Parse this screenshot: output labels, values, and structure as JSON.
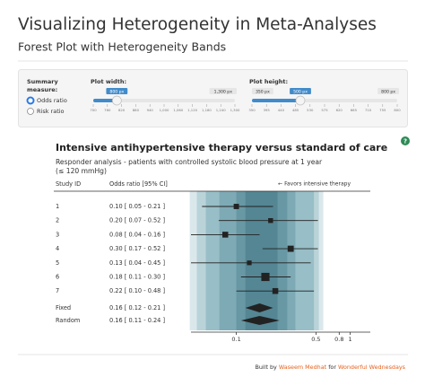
{
  "header": {
    "title": "Visualizing Heterogeneity in Meta-Analyses",
    "subtitle": "Forest Plot with Heterogeneity Bands"
  },
  "controls": {
    "summary_label": [
      "Summary",
      "measure:"
    ],
    "options": [
      "Odds ratio",
      "Risk ratio"
    ],
    "selected": 0,
    "sliders": [
      {
        "label": "Plot width:",
        "value": {
          "value": 800,
          "label": "800 px"
        },
        "ticks": [
          700,
          760,
          820,
          880,
          940,
          {
            "value": 1000,
            "label": "1,000"
          },
          {
            "value": 1060,
            "label": "1,060"
          },
          {
            "value": 1120,
            "label": "1,120"
          },
          {
            "value": 1180,
            "label": "1,180"
          },
          {
            "value": 1240,
            "label": "1,240"
          },
          {
            "value": 1300,
            "label": "1,300"
          }
        ],
        "end_labels": [
          {
            "value": 1300,
            "label": "1,300 px"
          }
        ]
      },
      {
        "label": "Plot height:",
        "value": {
          "value": 500,
          "label": "500 px"
        },
        "ticks": [
          350,
          395,
          440,
          485,
          530,
          575,
          620,
          665,
          710,
          755,
          800
        ],
        "end_labels": [
          {
            "value": 350,
            "label": "350 px"
          },
          {
            "value": 800,
            "label": "800 px"
          }
        ]
      }
    ]
  },
  "help_icon": "?",
  "chart_data": {
    "type": "forest",
    "title": "Intensive antihypertensive therapy versus standard of care",
    "subtitle": [
      "Responder analysis - patients with controlled systolic blood pressure at 1 year",
      "(≤ 120 mmHg)"
    ],
    "columns": [
      "Study ID",
      "Odds ratio [95% CI]"
    ],
    "favors": "← Favors intensive therapy",
    "log_scale": true,
    "xlim": [
      0.04,
      1.5
    ],
    "xticks": [
      0.1,
      0.5,
      0.8,
      1
    ],
    "bands": [
      {
        "lower": 0.039,
        "upper": 0.58,
        "color": "#dbe8eb"
      },
      {
        "lower": 0.045,
        "upper": 0.53,
        "color": "#b9d3d9"
      },
      {
        "lower": 0.054,
        "upper": 0.48,
        "color": "#98bec7"
      },
      {
        "lower": 0.071,
        "upper": 0.33,
        "color": "#7eaab5"
      },
      {
        "lower": 0.1,
        "upper": 0.28,
        "color": "#6898a4"
      },
      {
        "lower": 0.12,
        "upper": 0.23,
        "color": "#548694"
      }
    ],
    "studies": [
      {
        "id": "1",
        "label": "0.10 [ 0.05 - 0.21 ]",
        "or": 0.1,
        "lower": 0.05,
        "upper": 0.21,
        "weight": 9
      },
      {
        "id": "2",
        "label": "0.20 [ 0.07 - 0.52 ]",
        "or": 0.2,
        "lower": 0.07,
        "upper": 0.52,
        "weight": 7
      },
      {
        "id": "3",
        "label": "0.08 [ 0.04 - 0.16 ]",
        "or": 0.08,
        "lower": 0.04,
        "upper": 0.16,
        "weight": 12
      },
      {
        "id": "4",
        "label": "0.30 [ 0.17 - 0.52 ]",
        "or": 0.3,
        "lower": 0.17,
        "upper": 0.52,
        "weight": 14
      },
      {
        "id": "5",
        "label": "0.13 [ 0.04 - 0.45 ]",
        "or": 0.13,
        "lower": 0.04,
        "upper": 0.45,
        "weight": 6
      },
      {
        "id": "6",
        "label": "0.18 [ 0.11 - 0.30 ]",
        "or": 0.18,
        "lower": 0.11,
        "upper": 0.3,
        "weight": 30
      },
      {
        "id": "7",
        "label": "0.22 [ 0.10 - 0.48 ]",
        "or": 0.22,
        "lower": 0.1,
        "upper": 0.48,
        "weight": 12
      }
    ],
    "pooled": [
      {
        "id": "Fixed",
        "label": "0.16 [ 0.12 - 0.21 ]",
        "or": 0.16,
        "lower": 0.12,
        "upper": 0.21
      },
      {
        "id": "Random",
        "label": "0.16 [ 0.11 - 0.24 ]",
        "or": 0.16,
        "lower": 0.11,
        "upper": 0.24
      }
    ]
  },
  "footer": {
    "prefix": "Built by",
    "author": "Waseem Medhat",
    "joiner": "for",
    "event": "Wonderful Wednesdays"
  }
}
